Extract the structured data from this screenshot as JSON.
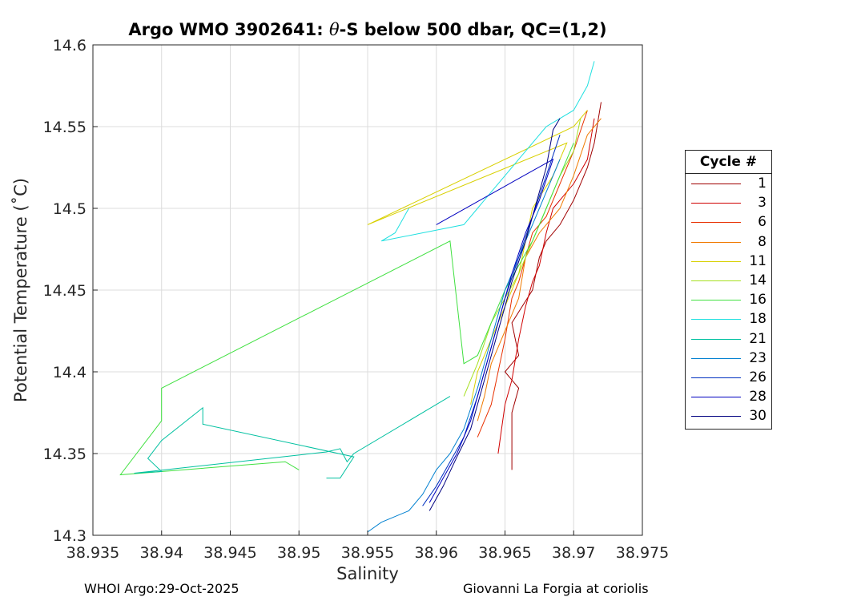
{
  "title_prefix": "Argo WMO 3902641: ",
  "title_theta": "θ",
  "title_suffix": "-S below 500 dbar,  QC=(1,2)",
  "footer_left": "WHOI Argo:29-Oct-2025",
  "footer_right": "Giovanni La Forgia at coriolis",
  "legend": {
    "title": "Cycle #",
    "entries": [
      {
        "label": "1",
        "color": "#a00000"
      },
      {
        "label": "3",
        "color": "#d00000"
      },
      {
        "label": "6",
        "color": "#e83000"
      },
      {
        "label": "8",
        "color": "#f07a00"
      },
      {
        "label": "11",
        "color": "#d8d000"
      },
      {
        "label": "14",
        "color": "#a6e020"
      },
      {
        "label": "16",
        "color": "#40e040"
      },
      {
        "label": "18",
        "color": "#20e0e0"
      },
      {
        "label": "21",
        "color": "#00c0a0"
      },
      {
        "label": "23",
        "color": "#0080d0"
      },
      {
        "label": "26",
        "color": "#0030c0"
      },
      {
        "label": "28",
        "color": "#0000c0"
      },
      {
        "label": "30",
        "color": "#000080"
      }
    ]
  },
  "chart_data": {
    "type": "line",
    "xlabel": "Salinity",
    "ylabel": "Potential Temperature (˚C)",
    "xlim": [
      38.935,
      38.975
    ],
    "ylim": [
      14.3,
      14.6
    ],
    "xticks": [
      "38.935",
      "38.94",
      "38.945",
      "38.95",
      "38.955",
      "38.96",
      "38.965",
      "38.97",
      "38.975"
    ],
    "yticks": [
      "14.3",
      "14.35",
      "14.4",
      "14.45",
      "14.5",
      "14.55",
      "14.6"
    ],
    "grid": true,
    "legend_position": "outside-right",
    "series": [
      {
        "name": "1",
        "x": [
          38.9655,
          38.9655,
          38.966,
          38.965,
          38.966,
          38.9655,
          38.967,
          38.9675,
          38.968,
          38.969,
          38.97,
          38.9705,
          38.971,
          38.9715,
          38.972
        ],
        "y": [
          14.34,
          14.375,
          14.39,
          14.4,
          14.41,
          14.43,
          14.45,
          14.47,
          14.48,
          14.49,
          14.505,
          14.515,
          14.525,
          14.54,
          14.565
        ]
      },
      {
        "name": "3",
        "x": [
          38.9645,
          38.965,
          38.9655,
          38.966,
          38.9665,
          38.967,
          38.9675,
          38.968,
          38.9685,
          38.97,
          38.971,
          38.9715
        ],
        "y": [
          14.35,
          14.38,
          14.395,
          14.42,
          14.44,
          14.455,
          14.465,
          14.485,
          14.5,
          14.515,
          14.53,
          14.555
        ]
      },
      {
        "name": "6",
        "x": [
          38.963,
          38.964,
          38.9645,
          38.965,
          38.9655,
          38.966,
          38.9665,
          38.967,
          38.968,
          38.969,
          38.97,
          38.971
        ],
        "y": [
          14.36,
          14.38,
          14.4,
          14.42,
          14.445,
          14.455,
          14.47,
          14.485,
          14.495,
          14.515,
          14.535,
          14.56
        ]
      },
      {
        "name": "8",
        "x": [
          38.963,
          38.9635,
          38.964,
          38.965,
          38.966,
          38.9665,
          38.9675,
          38.969,
          38.97,
          38.971,
          38.972
        ],
        "y": [
          14.37,
          14.385,
          14.405,
          14.425,
          14.445,
          14.47,
          14.485,
          14.5,
          14.52,
          14.545,
          14.555
        ]
      },
      {
        "name": "11",
        "x": [
          38.9625,
          38.963,
          38.964,
          38.965,
          38.966,
          38.9665,
          38.967,
          38.9685,
          38.9695,
          38.955,
          38.97,
          38.971
        ],
        "y": [
          14.38,
          14.4,
          14.42,
          14.44,
          14.46,
          14.48,
          14.5,
          14.52,
          14.54,
          14.49,
          14.55,
          14.56
        ]
      },
      {
        "name": "14",
        "x": [
          38.962,
          38.963,
          38.964,
          38.965,
          38.966,
          38.967,
          38.968,
          38.969,
          38.97,
          38.9705
        ],
        "y": [
          14.385,
          14.405,
          14.43,
          14.445,
          14.46,
          14.48,
          14.5,
          14.52,
          14.535,
          14.555
        ]
      },
      {
        "name": "16",
        "x": [
          38.95,
          38.949,
          38.937,
          38.94,
          38.94,
          38.961,
          38.962,
          38.963,
          38.964,
          38.965,
          38.966,
          38.967,
          38.968,
          38.969,
          38.97
        ],
        "y": [
          14.34,
          14.345,
          14.337,
          14.37,
          14.39,
          14.48,
          14.405,
          14.41,
          14.43,
          14.45,
          14.465,
          14.48,
          14.5,
          14.52,
          14.54
        ]
      },
      {
        "name": "18",
        "x": [
          38.958,
          38.957,
          38.956,
          38.962,
          38.963,
          38.964,
          38.965,
          38.966,
          38.967,
          38.968,
          38.969,
          38.97,
          38.971,
          38.9715
        ],
        "y": [
          14.5,
          14.485,
          14.48,
          14.49,
          14.5,
          14.51,
          14.52,
          14.53,
          14.54,
          14.55,
          14.555,
          14.56,
          14.575,
          14.59
        ]
      },
      {
        "name": "21",
        "x": [
          38.952,
          38.953,
          38.954,
          38.943,
          38.943,
          38.94,
          38.939,
          38.94,
          38.938,
          38.952,
          38.953,
          38.9535,
          38.954,
          38.96,
          38.961
        ],
        "y": [
          14.335,
          14.335,
          14.348,
          14.368,
          14.378,
          14.358,
          14.347,
          14.339,
          14.338,
          14.351,
          14.353,
          14.345,
          14.35,
          14.38,
          14.385
        ]
      },
      {
        "name": "23",
        "x": [
          38.955,
          38.956,
          38.958,
          38.959,
          38.96,
          38.961,
          38.962,
          38.963,
          38.964,
          38.965,
          38.966,
          38.967,
          38.968,
          38.969
        ],
        "y": [
          14.302,
          14.308,
          14.315,
          14.325,
          14.34,
          14.35,
          14.365,
          14.39,
          14.42,
          14.45,
          14.47,
          14.49,
          14.51,
          14.53
        ]
      },
      {
        "name": "26",
        "x": [
          38.959,
          38.96,
          38.961,
          38.962,
          38.963,
          38.964,
          38.965,
          38.966,
          38.967,
          38.968,
          38.969
        ],
        "y": [
          14.318,
          14.33,
          14.345,
          14.36,
          14.385,
          14.415,
          14.445,
          14.47,
          14.495,
          14.52,
          14.545
        ]
      },
      {
        "name": "28",
        "x": [
          38.9595,
          38.9605,
          38.9615,
          38.9625,
          38.9635,
          38.9645,
          38.9655,
          38.9665,
          38.9675,
          38.9685,
          38.96
        ],
        "y": [
          14.32,
          14.335,
          14.35,
          14.37,
          14.4,
          14.43,
          14.46,
          14.485,
          14.505,
          14.53,
          14.49
        ]
      },
      {
        "name": "30",
        "x": [
          38.9595,
          38.9605,
          38.9615,
          38.9625,
          38.9635,
          38.9645,
          38.9655,
          38.9665,
          38.9675,
          38.968,
          38.9685,
          38.969
        ],
        "y": [
          14.315,
          14.33,
          14.348,
          14.365,
          14.395,
          14.425,
          14.455,
          14.48,
          14.51,
          14.525,
          14.548,
          14.555
        ]
      }
    ]
  }
}
